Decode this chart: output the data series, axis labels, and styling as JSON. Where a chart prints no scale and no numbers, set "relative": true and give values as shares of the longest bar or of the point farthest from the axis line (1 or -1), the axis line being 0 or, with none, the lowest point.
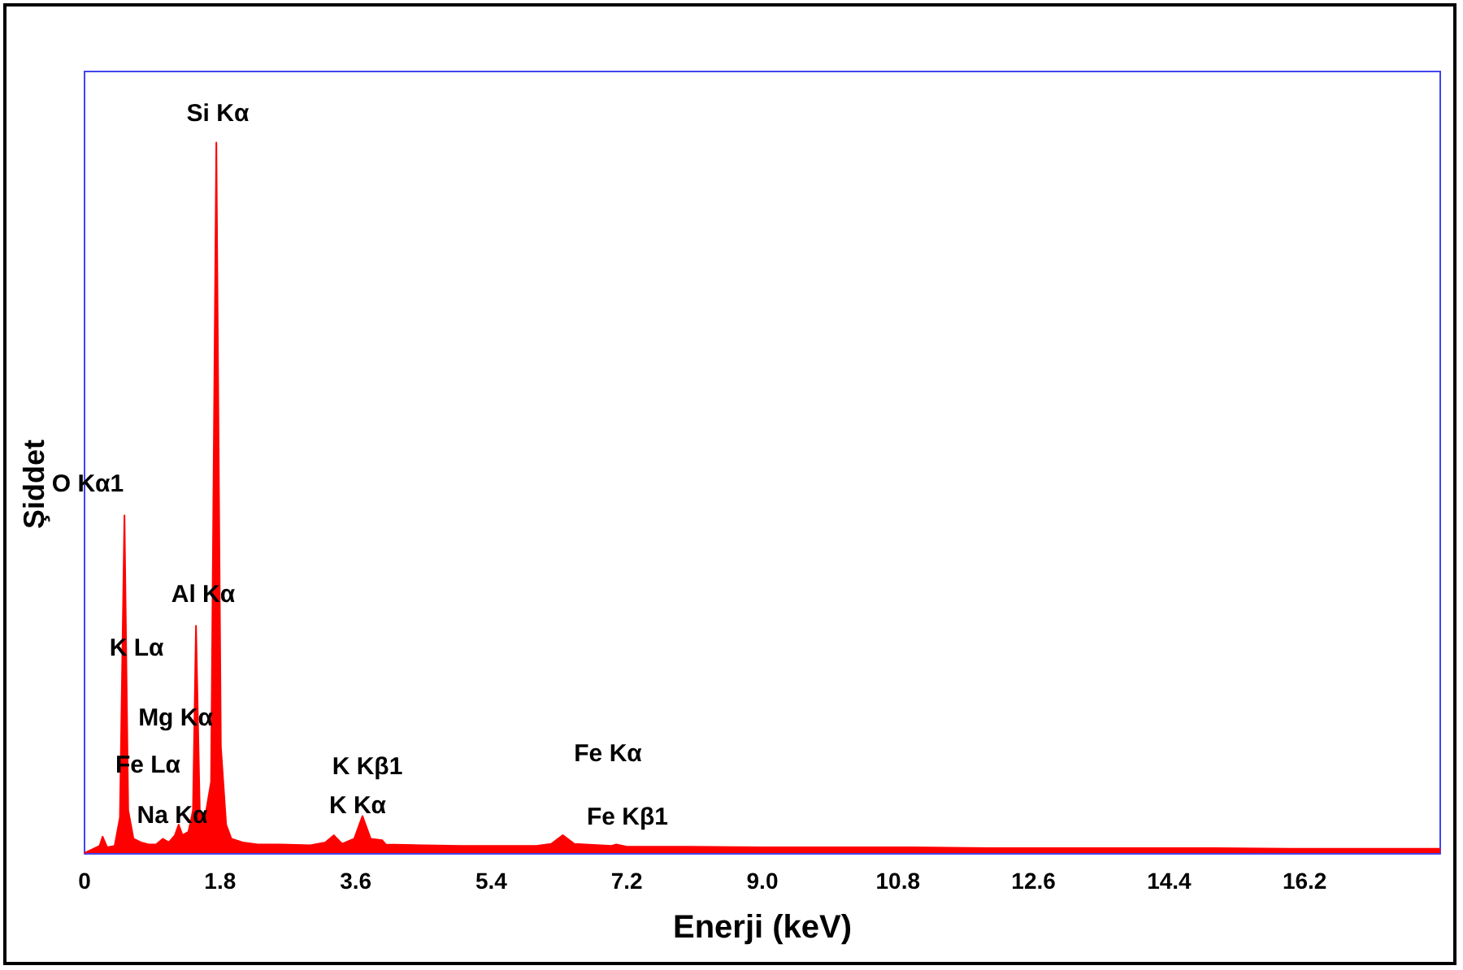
{
  "chart_data": {
    "type": "area",
    "xlabel": "Enerji (keV)",
    "ylabel": "Şiddet",
    "relative": true,
    "tick_labels": "x",
    "marker": "none",
    "xlim": [
      0,
      18
    ],
    "xticks": [
      0,
      1.8,
      3.6,
      5.4,
      7.2,
      {
        "value": 9,
        "label": "9.0"
      },
      10.8,
      12.6,
      14.4,
      16.2
    ],
    "series": [
      {
        "color": "#ff0000",
        "x": [
          0,
          0.1,
          0.2,
          0.24,
          0.3,
          0.4,
          0.47,
          0.53,
          0.58,
          0.65,
          0.75,
          0.85,
          0.95,
          1.04,
          1.12,
          1.2,
          1.25,
          1.3,
          1.38,
          1.44,
          1.48,
          1.53,
          1.6,
          1.68,
          1.75,
          1.81,
          1.88,
          1.95,
          2.1,
          2.3,
          2.6,
          3.0,
          3.2,
          3.31,
          3.42,
          3.58,
          3.69,
          3.8,
          3.95,
          4.0,
          4.5,
          5.0,
          5.5,
          6.0,
          6.2,
          6.35,
          6.5,
          7.0,
          7.06,
          7.2,
          8,
          9,
          10,
          11,
          12,
          13,
          14,
          15,
          16,
          17,
          18
        ],
        "values": [
          0,
          0.005,
          0.01,
          0.023,
          0.008,
          0.01,
          0.05,
          0.475,
          0.06,
          0.02,
          0.015,
          0.012,
          0.012,
          0.02,
          0.015,
          0.025,
          0.04,
          0.025,
          0.03,
          0.06,
          0.32,
          0.06,
          0.05,
          0.1,
          1,
          0.15,
          0.04,
          0.02,
          0.015,
          0.012,
          0.012,
          0.011,
          0.015,
          0.025,
          0.013,
          0.02,
          0.052,
          0.02,
          0.018,
          0.012,
          0.011,
          0.01,
          0.01,
          0.01,
          0.013,
          0.025,
          0.013,
          0.01,
          0.012,
          0.009,
          0.009,
          0.008,
          0.008,
          0.008,
          0.007,
          0.007,
          0.007,
          0.007,
          0.006,
          0.006,
          0.006
        ]
      }
    ],
    "annotations": [
      "Si Kα",
      "O Kα1",
      "Al Kα",
      "K Lα",
      "Mg Kα",
      "Fe Lα",
      "Na Kα",
      "K Kβ1",
      "K Kα",
      "Fe Kα",
      "Fe Kβ1"
    ]
  }
}
